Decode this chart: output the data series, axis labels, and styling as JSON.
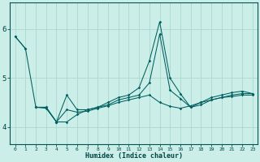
{
  "xlabel": "Humidex (Indice chaleur)",
  "bg_color": "#cceee8",
  "grid_color": "#aad8d0",
  "line_color": "#006060",
  "x_ticks": [
    0,
    1,
    2,
    3,
    4,
    5,
    6,
    7,
    8,
    9,
    10,
    11,
    12,
    13,
    14,
    15,
    16,
    17,
    18,
    19,
    20,
    21,
    22,
    23
  ],
  "ylim": [
    3.65,
    6.55
  ],
  "yticks": [
    4,
    5,
    6
  ],
  "line1_x": [
    0,
    1
  ],
  "line1_y": [
    5.85,
    5.6
  ],
  "line2_x": [
    2,
    3,
    4,
    5,
    6,
    7,
    8,
    9,
    10,
    11,
    12,
    13,
    14,
    15,
    16,
    17,
    18,
    19,
    20,
    21,
    22,
    23
  ],
  "line2_y": [
    4.4,
    4.4,
    4.1,
    4.1,
    4.25,
    4.35,
    4.4,
    4.45,
    4.55,
    4.6,
    4.65,
    4.9,
    5.9,
    4.75,
    4.58,
    4.4,
    4.45,
    4.55,
    4.6,
    4.65,
    4.68,
    4.68
  ],
  "line3_x": [
    2,
    3,
    4,
    5,
    6,
    7,
    8,
    9,
    10,
    11,
    12,
    13,
    14,
    15,
    16,
    17,
    18,
    19,
    20,
    21,
    22,
    23
  ],
  "line3_y": [
    4.4,
    4.4,
    4.1,
    4.65,
    4.35,
    4.35,
    4.4,
    4.5,
    4.6,
    4.65,
    4.8,
    5.35,
    6.15,
    5.0,
    4.68,
    4.4,
    4.5,
    4.6,
    4.65,
    4.7,
    4.73,
    4.68
  ],
  "line4_x": [
    0,
    1,
    2,
    3,
    4,
    5,
    6,
    7,
    8,
    9,
    10,
    11,
    12,
    13,
    14,
    15,
    16,
    17,
    18,
    19,
    20,
    21,
    22,
    23
  ],
  "line4_y": [
    5.85,
    5.6,
    4.4,
    4.38,
    4.1,
    4.35,
    4.3,
    4.32,
    4.38,
    4.43,
    4.5,
    4.55,
    4.6,
    4.65,
    4.5,
    4.42,
    4.38,
    4.43,
    4.5,
    4.55,
    4.6,
    4.62,
    4.65,
    4.65
  ]
}
